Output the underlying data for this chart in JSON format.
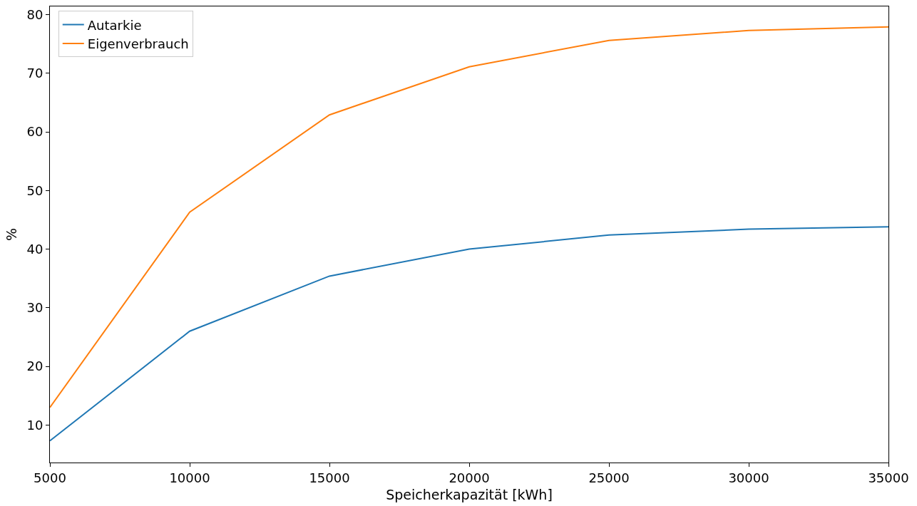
{
  "chart_data": {
    "type": "line",
    "xlabel": "Speicherkapazität [kWh]",
    "ylabel": "%",
    "x": [
      5000,
      10000,
      15000,
      20000,
      25000,
      30000,
      35000
    ],
    "series": [
      {
        "name": "Autarkie",
        "color": "#1f77b4",
        "values": [
          7.3,
          26.0,
          35.4,
          40.0,
          42.4,
          43.4,
          43.8
        ]
      },
      {
        "name": "Eigenverbrauch",
        "color": "#ff7f0e",
        "values": [
          13.0,
          46.3,
          62.9,
          71.1,
          75.6,
          77.3,
          77.9
        ]
      }
    ],
    "xlim": [
      5000,
      35000
    ],
    "xticks": [
      5000,
      10000,
      15000,
      20000,
      25000,
      30000,
      35000
    ],
    "ylim": [
      3.6,
      81.4
    ],
    "yticks": [
      10,
      20,
      30,
      40,
      50,
      60,
      70,
      80
    ],
    "legend": "top left",
    "grid": false,
    "marker": "none",
    "line_style": "solid"
  }
}
